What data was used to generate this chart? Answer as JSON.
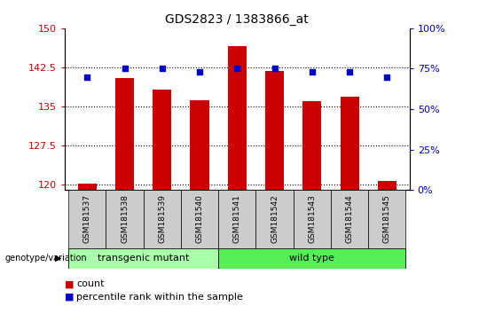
{
  "title": "GDS2823 / 1383866_at",
  "samples": [
    "GSM181537",
    "GSM181538",
    "GSM181539",
    "GSM181540",
    "GSM181541",
    "GSM181542",
    "GSM181543",
    "GSM181544",
    "GSM181545"
  ],
  "count_values": [
    120.3,
    140.5,
    138.2,
    136.2,
    146.5,
    141.8,
    136.0,
    136.8,
    120.8
  ],
  "percentile_values": [
    70,
    75,
    75,
    73,
    75,
    75,
    73,
    73,
    70
  ],
  "groups": [
    {
      "label": "transgenic mutant",
      "start": 0,
      "end": 4
    },
    {
      "label": "wild type",
      "start": 4,
      "end": 9
    }
  ],
  "group_colors": [
    "#AAFFAA",
    "#55EE55"
  ],
  "ylim_left": [
    119,
    150
  ],
  "ylim_right": [
    0,
    100
  ],
  "yticks_left": [
    120,
    127.5,
    135,
    142.5,
    150
  ],
  "yticks_right": [
    0,
    25,
    50,
    75,
    100
  ],
  "bar_color": "#CC0000",
  "dot_color": "#0000CC",
  "bar_width": 0.5,
  "legend_count_label": "count",
  "legend_pct_label": "percentile rank within the sample",
  "genotype_label": "genotype/variation"
}
